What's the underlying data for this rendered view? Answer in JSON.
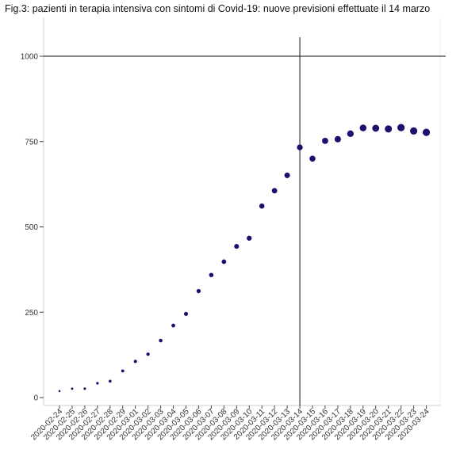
{
  "title": "Fig.3: pazienti in terapia intensiva con sintomi di Covid-19: nuove previsioni effettuate il 14 marzo",
  "chart_data": {
    "type": "scatter",
    "title": "Fig.3: pazienti in terapia intensiva con sintomi di Covid-19: nuove previsioni effettuate il 14 marzo",
    "xlabel": "",
    "ylabel": "",
    "ylim": [
      0,
      1000
    ],
    "yticks": [
      0,
      250,
      500,
      750,
      1000
    ],
    "grid": false,
    "reference_lines": {
      "vertical_at": "2020-03-14",
      "horizontal_at": 1000
    },
    "categories": [
      "2020-02-24",
      "2020-02-25",
      "2020-02-26",
      "2020-02-27",
      "2020-02-28",
      "2020-02-29",
      "2020-03-01",
      "2020-03-02",
      "2020-03-03",
      "2020-03-04",
      "2020-03-05",
      "2020-03-06",
      "2020-03-07",
      "2020-03-08",
      "2020-03-09",
      "2020-03-10",
      "2020-03-11",
      "2020-03-12",
      "2020-03-13",
      "2020-03-14",
      "2020-03-15",
      "2020-03-16",
      "2020-03-17",
      "2020-03-18",
      "2020-03-19",
      "2020-03-20",
      "2020-03-21",
      "2020-03-22",
      "2020-03-23",
      "2020-03-24"
    ],
    "series": [
      {
        "values": [
          19,
          26,
          26,
          42,
          48,
          78,
          106,
          127,
          167,
          211,
          245,
          312,
          359,
          398,
          443,
          467,
          561,
          606,
          651,
          733,
          700,
          752,
          757,
          773,
          790,
          789,
          787,
          791,
          781,
          777
        ]
      }
    ],
    "marker_color": "#1f0f6e",
    "marker_size_grows_with_index": true
  }
}
